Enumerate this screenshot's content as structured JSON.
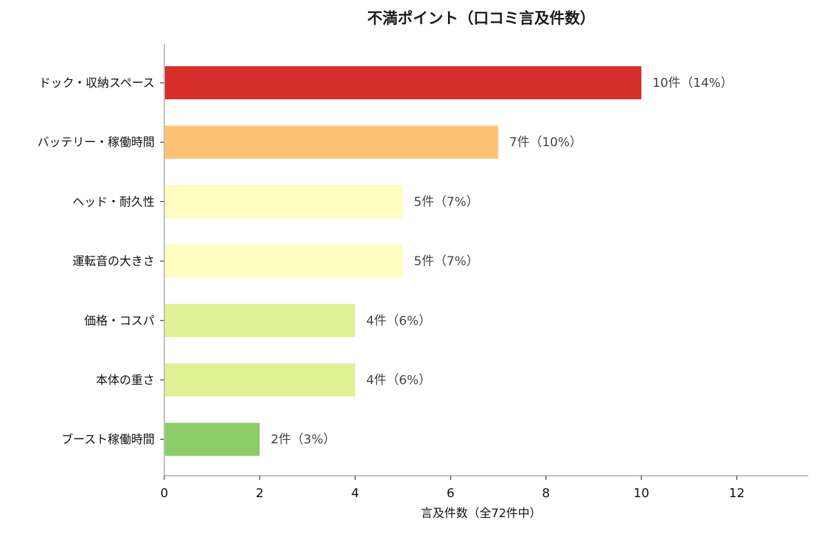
{
  "chart_data": {
    "type": "bar",
    "orientation": "horizontal",
    "title": "不満ポイント（口コミ言及件数）",
    "xlabel": "言及件数（全72件中）",
    "ylabel": "",
    "xlim": [
      0,
      13.5
    ],
    "x_ticks": [
      0,
      2,
      4,
      6,
      8,
      10,
      12
    ],
    "grid": false,
    "categories": [
      "ドック・収納スペース",
      "バッテリー・稼働時間",
      "ヘッド・耐久性",
      "運転音の大きさ",
      "価格・コスパ",
      "本体の重さ",
      "ブースト稼働時間"
    ],
    "values": [
      10,
      7,
      5,
      5,
      4,
      4,
      2
    ],
    "data_labels": [
      "10件（14%）",
      "7件（10%）",
      "5件（7%）",
      "5件（7%）",
      "4件（6%）",
      "4件（6%）",
      "2件（3%）"
    ],
    "colors": [
      "#d7302a",
      "#fdc374",
      "#fefcbe",
      "#fefcbe",
      "#e0f095",
      "#e0f095",
      "#8ccd68"
    ],
    "axis_color": "#aaaaaa"
  }
}
